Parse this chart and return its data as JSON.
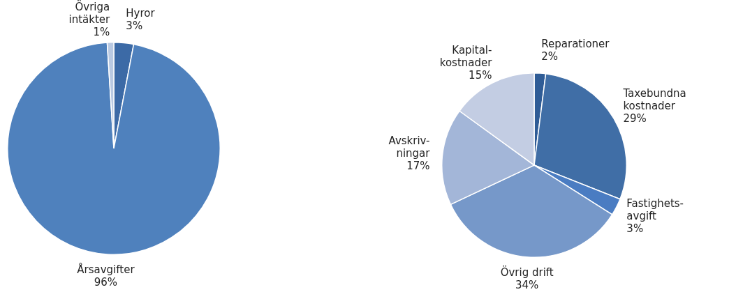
{
  "chart_data": [
    {
      "type": "pie",
      "categories": [
        "Hyror",
        "Årsavgifter",
        "Övriga\nintäkter"
      ],
      "values": [
        3,
        96,
        1
      ],
      "value_labels": [
        "3%",
        "96%",
        "1%"
      ],
      "colors": [
        "#3c6aa6",
        "#4f81bd",
        "#b9c9e2"
      ],
      "legend": false
    },
    {
      "type": "pie",
      "categories": [
        "Reparationer",
        "Taxebundna\nkostnader",
        "Fastighets-\navgift",
        "Övrig drift",
        "Avskriv-\nningar",
        "Kapital-\nkostnader"
      ],
      "values": [
        2,
        29,
        3,
        34,
        17,
        15
      ],
      "value_labels": [
        "2%",
        "29%",
        "3%",
        "34%",
        "17%",
        "15%"
      ],
      "colors": [
        "#2f5c96",
        "#406ea6",
        "#4a7cc2",
        "#7698c9",
        "#a3b6d8",
        "#c3cde3"
      ],
      "legend": false
    }
  ]
}
